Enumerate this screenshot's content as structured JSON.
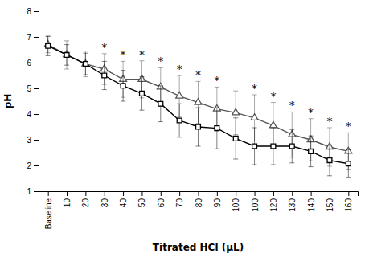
{
  "chart_data": {
    "type": "line",
    "categories": [
      "Baseline",
      "10",
      "20",
      "30",
      "40",
      "50",
      "60",
      "70",
      "80",
      "90",
      "100",
      "100",
      "120",
      "130",
      "140",
      "150",
      "160"
    ],
    "series": [
      {
        "color": "#555555",
        "marker": "triangle",
        "line_style": "solid",
        "values": [
          6.7,
          6.3,
          5.95,
          5.75,
          5.35,
          5.35,
          5.05,
          4.7,
          4.45,
          4.2,
          4.05,
          3.85,
          3.55,
          3.2,
          3.0,
          2.72,
          2.55
        ],
        "error": [
          0.32,
          0.55,
          0.5,
          0.6,
          0.7,
          0.72,
          0.75,
          0.8,
          0.82,
          0.85,
          0.85,
          0.9,
          0.9,
          0.88,
          0.82,
          0.75,
          0.72
        ]
      },
      {
        "color": "#000000",
        "marker": "square",
        "line_style": "solid",
        "values": [
          6.65,
          6.3,
          5.95,
          5.5,
          5.1,
          4.8,
          4.4,
          3.75,
          3.5,
          3.45,
          3.05,
          2.75,
          2.75,
          2.75,
          2.55,
          2.2,
          2.07
        ],
        "error": [
          0.38,
          0.4,
          0.42,
          0.55,
          0.6,
          0.65,
          0.7,
          0.65,
          0.75,
          0.8,
          0.8,
          0.72,
          0.72,
          0.65,
          0.6,
          0.6,
          0.55
        ]
      }
    ],
    "xlabel": "Titrated HCl (μL)",
    "ylabel": "pH",
    "ylim": [
      1,
      8
    ],
    "yticks": [
      1,
      2,
      3,
      4,
      5,
      6,
      7,
      8
    ],
    "grid": false,
    "annotations": [
      {
        "text": "*",
        "x": 3
      },
      {
        "text": "*",
        "x": 4
      },
      {
        "text": "*",
        "x": 5
      },
      {
        "text": "*",
        "x": 6
      },
      {
        "text": "*",
        "x": 7
      },
      {
        "text": "*",
        "x": 8
      },
      {
        "text": "*",
        "x": 9
      },
      {
        "text": "*",
        "x": 11
      },
      {
        "text": "*",
        "x": 12
      },
      {
        "text": "*",
        "x": 13
      },
      {
        "text": "*",
        "x": 14
      },
      {
        "text": "*",
        "x": 15
      },
      {
        "text": "*",
        "x": 16
      }
    ]
  }
}
